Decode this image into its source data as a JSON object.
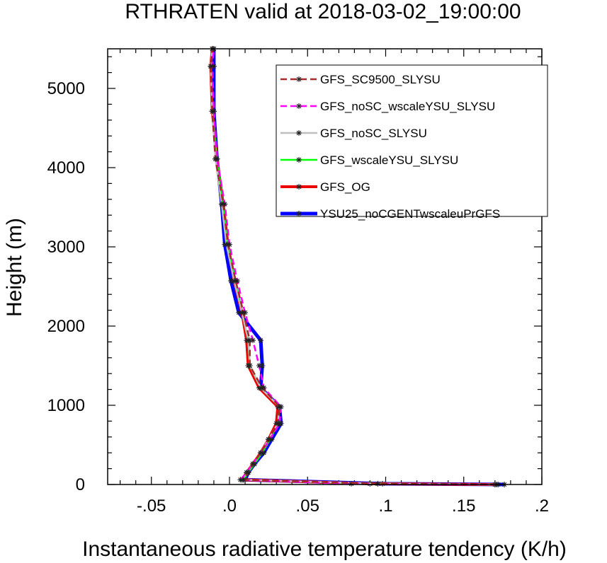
{
  "chart_data": {
    "type": "line",
    "title": "RTHRATEN valid at 2018-03-02_19:00:00",
    "xlabel": "Instantaneous radiative temperature tendency (K/h)",
    "ylabel": "Height (m)",
    "xlim": [
      -0.078,
      0.2
    ],
    "ylim": [
      0,
      5500
    ],
    "x_ticks": [
      -0.05,
      0,
      0.05,
      0.1,
      0.15,
      0.2
    ],
    "x_tick_labels": [
      "-.05",
      ".0",
      ".05",
      ".1",
      ".15",
      ".2"
    ],
    "y_ticks": [
      0,
      1000,
      2000,
      3000,
      4000,
      5000
    ],
    "y_tick_labels": [
      "0",
      "1000",
      "2000",
      "3000",
      "4000",
      "5000"
    ],
    "legend_position": "top-right",
    "y": [
      0,
      10,
      60,
      150,
      260,
      400,
      570,
      770,
      980,
      1220,
      1500,
      1820,
      2170,
      2570,
      3030,
      3540,
      4110,
      4710,
      5280,
      5500
    ],
    "series": [
      {
        "name": "GFS_SC9500_SLYSU",
        "color": "#a52a2a",
        "dash": "dashed",
        "width": 2.5,
        "x": [
          0.171,
          0.095,
          0.009,
          0.012,
          0.015,
          0.02,
          0.025,
          0.031,
          0.032,
          0.021,
          0.013,
          0.013,
          0.009,
          0.004,
          -0.001,
          -0.004,
          -0.009,
          -0.011,
          -0.012,
          -0.011
        ]
      },
      {
        "name": "GFS_noSC_wscaleYSU_SLYSU",
        "color": "#ff00ff",
        "dash": "dashed",
        "width": 2.5,
        "x": [
          0.172,
          0.078,
          0.007,
          0.011,
          0.015,
          0.02,
          0.026,
          0.032,
          0.033,
          0.022,
          0.019,
          0.015,
          0.01,
          0.005,
          0.0,
          -0.003,
          -0.008,
          -0.01,
          -0.011,
          -0.01
        ]
      },
      {
        "name": "GFS_noSC_SLYSU",
        "color": "#bebebe",
        "dash": "solid",
        "width": 2.5,
        "x": [
          0.17,
          0.095,
          0.008,
          0.011,
          0.015,
          0.02,
          0.025,
          0.031,
          0.032,
          0.02,
          0.013,
          0.012,
          0.008,
          0.003,
          -0.002,
          -0.005,
          -0.009,
          -0.011,
          -0.012,
          -0.011
        ]
      },
      {
        "name": "GFS_wscaleYSU_SLYSU",
        "color": "#00ff00",
        "dash": "solid",
        "width": 2.5,
        "x": [
          0.17,
          0.09,
          0.009,
          0.012,
          0.016,
          0.021,
          0.026,
          0.031,
          0.032,
          0.02,
          0.013,
          0.012,
          0.008,
          0.004,
          -0.001,
          -0.004,
          -0.008,
          -0.011,
          -0.012,
          -0.011
        ]
      },
      {
        "name": "GFS_OG",
        "color": "#ee0000",
        "dash": "solid",
        "width": 4,
        "x": [
          0.17,
          0.09,
          0.008,
          0.011,
          0.015,
          0.02,
          0.025,
          0.03,
          0.031,
          0.019,
          0.012,
          0.011,
          0.008,
          0.003,
          -0.001,
          -0.004,
          -0.008,
          -0.011,
          -0.012,
          -0.011
        ]
      },
      {
        "name": "YSU25_noCGENTwscaleuPrGFS",
        "color": "#0000ff",
        "dash": "solid",
        "width": 5,
        "x": [
          0.176,
          0.098,
          0.01,
          0.012,
          0.016,
          0.022,
          0.027,
          0.033,
          0.032,
          0.02,
          0.021,
          0.02,
          0.006,
          0.001,
          -0.003,
          -0.005,
          -0.008,
          -0.01,
          -0.01,
          -0.01
        ]
      }
    ]
  }
}
